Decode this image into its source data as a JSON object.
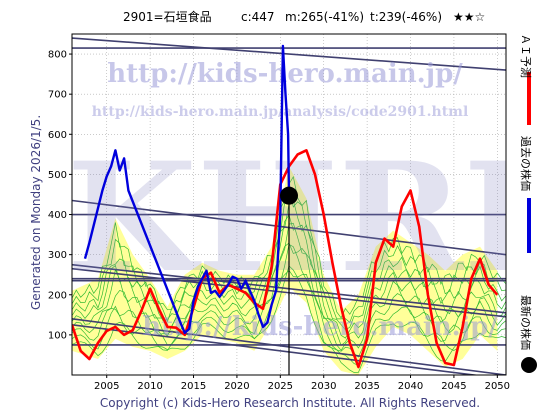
{
  "header": {
    "code_name": "2901=石垣食品",
    "current": "c:447",
    "median": "m:265(-41%)",
    "target": "t:239(-46%)",
    "rating": "★★☆"
  },
  "side_label": "Generated on Monday 2026/1/5.",
  "footer": "Copyright (c) Kids-Hero Research Institute. All Rights Reserved.",
  "watermark": {
    "url_main": "http://kids-hero.main.jp/",
    "url_sub": "http://kids-hero.main.jp/analysis/code2901.html",
    "big": "KHRI"
  },
  "legend": {
    "ai_forecast": "ＡＩ予測",
    "past_price": "過去の株価",
    "latest_price": "最新の株価"
  },
  "colors": {
    "ai_forecast": "#ff0000",
    "past_price": "#0000dd",
    "latest_price": "#000000",
    "band_fill": "#ffff99",
    "ensemble": "#33bb33",
    "trend": "#404070",
    "grid": "#aaaaaa"
  },
  "chart_data": {
    "type": "line",
    "xlim": [
      2001,
      2051
    ],
    "ylim": [
      0,
      850
    ],
    "x_ticks": [
      2005,
      2010,
      2015,
      2020,
      2025,
      2030,
      2035,
      2040,
      2045,
      2050
    ],
    "y_ticks": [
      100,
      200,
      300,
      400,
      500,
      600,
      700,
      800
    ],
    "latest_point": {
      "x": 2026.0,
      "y": 447
    },
    "current_year_marker": 2026.0,
    "series": [
      {
        "name": "ＡＩ予測",
        "points": [
          [
            2001,
            125
          ],
          [
            2002,
            60
          ],
          [
            2003,
            40
          ],
          [
            2004,
            80
          ],
          [
            2005,
            110
          ],
          [
            2006,
            120
          ],
          [
            2007,
            100
          ],
          [
            2008,
            112
          ],
          [
            2009,
            160
          ],
          [
            2010,
            215
          ],
          [
            2011,
            165
          ],
          [
            2012,
            120
          ],
          [
            2013,
            118
          ],
          [
            2014,
            100
          ],
          [
            2015,
            168
          ],
          [
            2016,
            240
          ],
          [
            2017,
            255
          ],
          [
            2018,
            205
          ],
          [
            2019,
            225
          ],
          [
            2020,
            215
          ],
          [
            2021,
            205
          ],
          [
            2022,
            180
          ],
          [
            2023,
            165
          ],
          [
            2024,
            270
          ],
          [
            2025,
            475
          ],
          [
            2026,
            520
          ],
          [
            2027,
            550
          ],
          [
            2028,
            560
          ],
          [
            2029,
            500
          ],
          [
            2030,
            400
          ],
          [
            2031,
            280
          ],
          [
            2032,
            170
          ],
          [
            2033,
            80
          ],
          [
            2034,
            20
          ],
          [
            2035,
            90
          ],
          [
            2036,
            280
          ],
          [
            2037,
            340
          ],
          [
            2038,
            320
          ],
          [
            2039,
            420
          ],
          [
            2040,
            460
          ],
          [
            2041,
            370
          ],
          [
            2042,
            200
          ],
          [
            2043,
            80
          ],
          [
            2044,
            30
          ],
          [
            2045,
            25
          ],
          [
            2046,
            120
          ],
          [
            2047,
            240
          ],
          [
            2048,
            290
          ],
          [
            2049,
            225
          ],
          [
            2050,
            200
          ]
        ]
      },
      {
        "name": "過去の株価",
        "points": [
          [
            2002.5,
            290
          ],
          [
            2003,
            330
          ],
          [
            2004.5,
            460
          ],
          [
            2005,
            495
          ],
          [
            2005.5,
            520
          ],
          [
            2006,
            560
          ],
          [
            2006.5,
            510
          ],
          [
            2007,
            540
          ],
          [
            2007.5,
            460
          ],
          [
            2013.5,
            130
          ],
          [
            2014,
            105
          ],
          [
            2014.5,
            115
          ],
          [
            2015,
            185
          ],
          [
            2015.5,
            220
          ],
          [
            2016,
            240
          ],
          [
            2016.5,
            260
          ],
          [
            2017,
            205
          ],
          [
            2017.5,
            210
          ],
          [
            2018,
            195
          ],
          [
            2018.5,
            210
          ],
          [
            2019,
            225
          ],
          [
            2019.5,
            245
          ],
          [
            2020,
            240
          ],
          [
            2020.5,
            215
          ],
          [
            2021,
            235
          ],
          [
            2021.5,
            210
          ],
          [
            2022,
            185
          ],
          [
            2022.5,
            150
          ],
          [
            2023,
            120
          ],
          [
            2023.5,
            130
          ],
          [
            2024,
            175
          ],
          [
            2024.5,
            210
          ],
          [
            2025,
            400
          ],
          [
            2025.3,
            820
          ],
          [
            2025.6,
            700
          ],
          [
            2025.9,
            600
          ],
          [
            2026.0,
            447
          ]
        ]
      }
    ],
    "band": {
      "upper": [
        [
          2001,
          210
        ],
        [
          2004,
          240
        ],
        [
          2006,
          390
        ],
        [
          2008,
          300
        ],
        [
          2010,
          240
        ],
        [
          2012,
          170
        ],
        [
          2014,
          250
        ],
        [
          2016,
          280
        ],
        [
          2018,
          260
        ],
        [
          2020,
          250
        ],
        [
          2022,
          250
        ],
        [
          2024,
          320
        ],
        [
          2026,
          520
        ],
        [
          2028,
          440
        ],
        [
          2030,
          250
        ],
        [
          2032,
          160
        ],
        [
          2034,
          200
        ],
        [
          2036,
          320
        ],
        [
          2038,
          360
        ],
        [
          2040,
          330
        ],
        [
          2042,
          300
        ],
        [
          2044,
          260
        ],
        [
          2046,
          300
        ],
        [
          2048,
          320
        ],
        [
          2050,
          260
        ]
      ],
      "lower": [
        [
          2001,
          60
        ],
        [
          2004,
          40
        ],
        [
          2006,
          90
        ],
        [
          2008,
          70
        ],
        [
          2010,
          60
        ],
        [
          2012,
          40
        ],
        [
          2014,
          60
        ],
        [
          2016,
          100
        ],
        [
          2018,
          90
        ],
        [
          2020,
          80
        ],
        [
          2022,
          60
        ],
        [
          2024,
          130
        ],
        [
          2026,
          220
        ],
        [
          2028,
          180
        ],
        [
          2030,
          60
        ],
        [
          2032,
          10
        ],
        [
          2034,
          0
        ],
        [
          2036,
          70
        ],
        [
          2038,
          120
        ],
        [
          2040,
          100
        ],
        [
          2042,
          60
        ],
        [
          2044,
          20
        ],
        [
          2046,
          40
        ],
        [
          2048,
          100
        ],
        [
          2050,
          60
        ]
      ]
    },
    "trend_lines": [
      {
        "from": [
          2001,
          840
        ],
        "to": [
          2051,
          760
        ]
      },
      {
        "from": [
          2001,
          815
        ],
        "to": [
          2051,
          815
        ]
      },
      {
        "from": [
          2001,
          435
        ],
        "to": [
          2051,
          300
        ]
      },
      {
        "from": [
          2001,
          400
        ],
        "to": [
          2051,
          400
        ]
      },
      {
        "from": [
          2001,
          275
        ],
        "to": [
          2051,
          155
        ]
      },
      {
        "from": [
          2001,
          265
        ],
        "to": [
          2051,
          145
        ]
      },
      {
        "from": [
          2001,
          240
        ],
        "to": [
          2051,
          240
        ]
      },
      {
        "from": [
          2001,
          235
        ],
        "to": [
          2051,
          235
        ]
      },
      {
        "from": [
          2001,
          75
        ],
        "to": [
          2051,
          75
        ]
      },
      {
        "from": [
          2001,
          140
        ],
        "to": [
          2051,
          0
        ]
      },
      {
        "from": [
          2001,
          125
        ],
        "to": [
          2051,
          -10
        ]
      }
    ]
  }
}
